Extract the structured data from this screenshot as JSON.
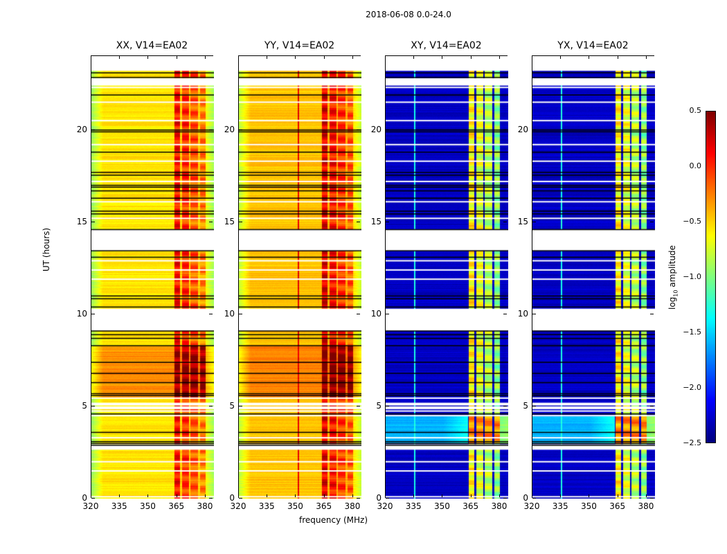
{
  "chart_data": {
    "type": "heatmap",
    "title": "2018-06-08 0.0-24.0",
    "xlabel": "frequency (MHz)",
    "ylabel": "UT (hours)",
    "xlim": [
      320,
      384.4
    ],
    "ylim": [
      0,
      24
    ],
    "xticks": [
      320,
      335,
      350,
      365,
      380
    ],
    "yticks": [
      0,
      5,
      10,
      15,
      20
    ],
    "colormap": "jet",
    "colorbar": {
      "label": "log10 amplitude",
      "label_main": "log",
      "label_sub": "10",
      "label_tail": " amplitude",
      "range": [
        -2.5,
        0.5
      ],
      "ticks": [
        "0.5",
        "0.0",
        "−0.5",
        "−1.0",
        "−1.5",
        "−2.0",
        "−2.5"
      ],
      "tick_values": [
        0.5,
        0.0,
        -0.5,
        -1.0,
        -1.5,
        -2.0,
        -2.5
      ]
    },
    "flagged_white_bands_hours": [
      [
        23.2,
        24.0
      ],
      [
        22.4,
        22.8
      ],
      [
        13.45,
        14.6
      ],
      [
        9.1,
        10.3
      ],
      [
        2.65,
        2.95
      ],
      [
        4.85,
        5.0
      ],
      [
        5.05,
        5.2
      ]
    ],
    "black_lines_hours": [
      23.1,
      22.85,
      21.9,
      20.0,
      19.9,
      18.8,
      17.7,
      17.55,
      17.0,
      16.9,
      16.7,
      16.3,
      15.6,
      15.45,
      14.6,
      13.45,
      13.1,
      11.0,
      10.85,
      10.4,
      9.1,
      8.9,
      8.7,
      8.3,
      7.4,
      6.8,
      6.3,
      5.7,
      5.6,
      4.6,
      3.6,
      3.1,
      3.0,
      2.9
    ],
    "white_lines_hours": [
      22.3,
      21.5,
      20.5,
      19.2,
      18.3,
      17.2,
      16.1,
      15.2,
      12.9,
      12.4,
      11.9,
      5.45,
      4.75,
      4.5,
      3.3,
      2.0,
      1.5,
      0.1
    ],
    "bright_channel_blocks_MHz": [
      [
        363.5,
        366.5
      ],
      [
        367.5,
        371
      ],
      [
        372,
        376
      ],
      [
        377,
        380
      ]
    ],
    "panels": [
      {
        "name": "XX",
        "title": "XX, V14=EA02",
        "baseline_log_amp": -0.55,
        "band_log_amp": 0.1,
        "daytime_log_amp": -0.3,
        "daytime_hours": [
          5.5,
          8.3
        ]
      },
      {
        "name": "YY",
        "title": "YY, V14=EA02",
        "baseline_log_amp": -0.45,
        "band_log_amp": 0.2,
        "daytime_log_amp": -0.25,
        "daytime_hours": [
          5.5,
          8.3
        ],
        "rfi_line_MHz": 351
      },
      {
        "name": "XY",
        "title": "XY, V14=EA02",
        "baseline_log_amp": -2.3,
        "band_log_amp": -0.6,
        "daytime_log_amp": -1.6,
        "daytime_hours": [
          3.0,
          4.5
        ],
        "rfi_line_MHz": 335
      },
      {
        "name": "YX",
        "title": "YX, V14=EA02",
        "baseline_log_amp": -2.3,
        "band_log_amp": -0.6,
        "daytime_log_amp": -1.6,
        "daytime_hours": [
          3.0,
          4.5
        ],
        "rfi_line_MHz": 335
      }
    ]
  }
}
